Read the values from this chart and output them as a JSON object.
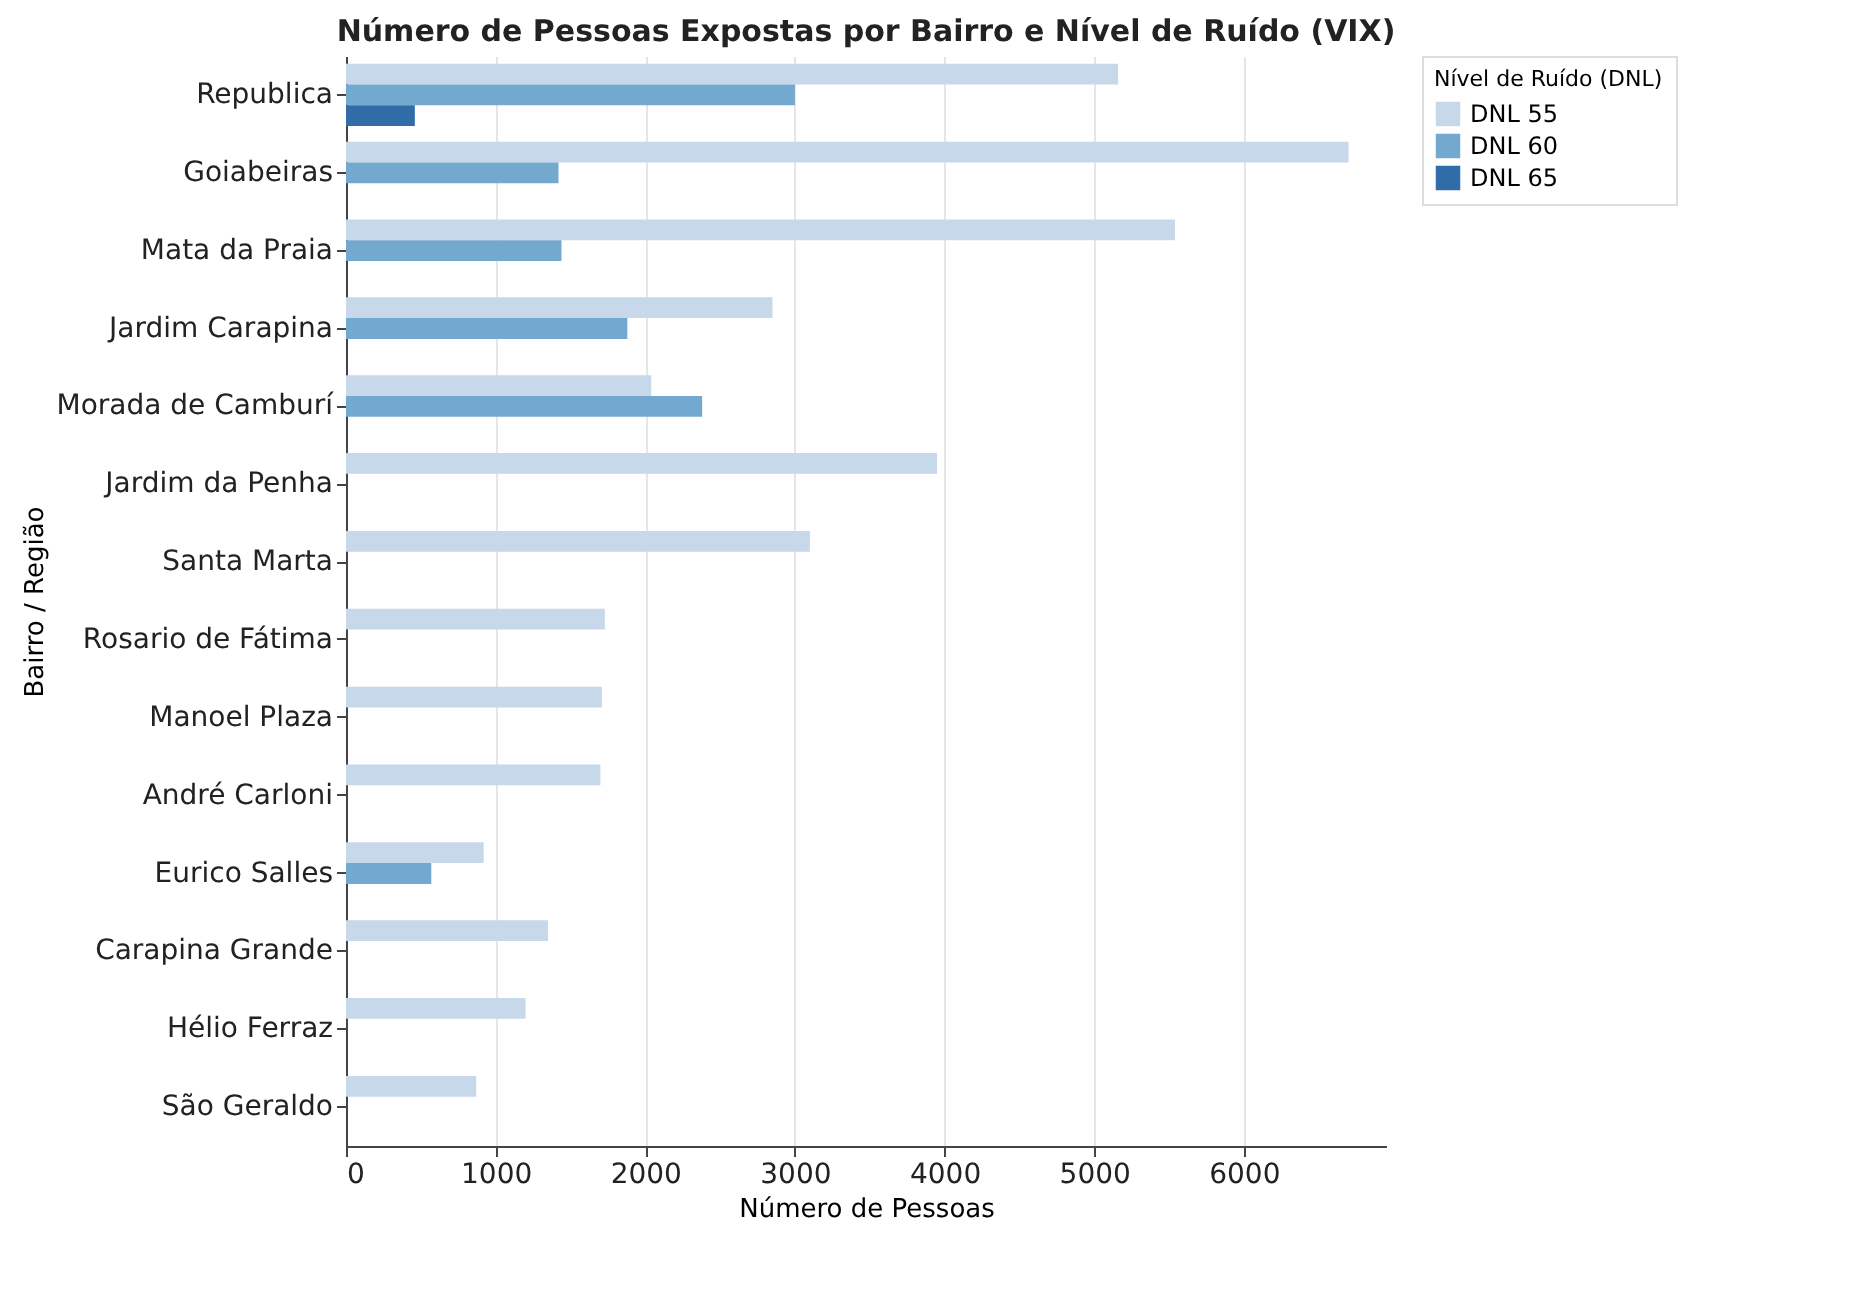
{
  "chart_data": {
    "type": "bar",
    "orientation": "horizontal",
    "title": "Número de Pessoas Expostas por Bairro e Nível de Ruído (VIX)",
    "xlabel": "Número de Pessoas",
    "ylabel": "Bairro / Região",
    "legend_title": "Nível de Ruído (DNL)",
    "categories": [
      "Republica",
      "Goiabeiras",
      "Mata da Praia",
      "Jardim Carapina",
      "Morada de Camburí",
      "Jardim da Penha",
      "Santa Marta",
      "Rosario de Fátima",
      "Manoel Plaza",
      "André Carloni",
      "Eurico Salles",
      "Carapina Grande",
      "Hélio Ferraz",
      "São Geraldo"
    ],
    "series": [
      {
        "name": "DNL 55",
        "color": "#c6d8ea",
        "values": [
          5160,
          6700,
          5540,
          2850,
          2040,
          3950,
          3100,
          1730,
          1710,
          1700,
          920,
          1350,
          1200,
          870
        ]
      },
      {
        "name": "DNL 60",
        "color": "#74a9cf",
        "values": [
          3000,
          1420,
          1440,
          1880,
          2380,
          null,
          null,
          null,
          null,
          null,
          570,
          null,
          null,
          null
        ]
      },
      {
        "name": "DNL 65",
        "color": "#2f6ca8",
        "values": [
          460,
          null,
          null,
          null,
          null,
          null,
          null,
          null,
          null,
          null,
          null,
          null,
          null,
          null
        ]
      }
    ],
    "xlim": [
      0,
      6950
    ],
    "xticks": [
      0,
      1000,
      2000,
      3000,
      4000,
      5000,
      6000
    ],
    "grid": "x",
    "legend": "top right"
  }
}
